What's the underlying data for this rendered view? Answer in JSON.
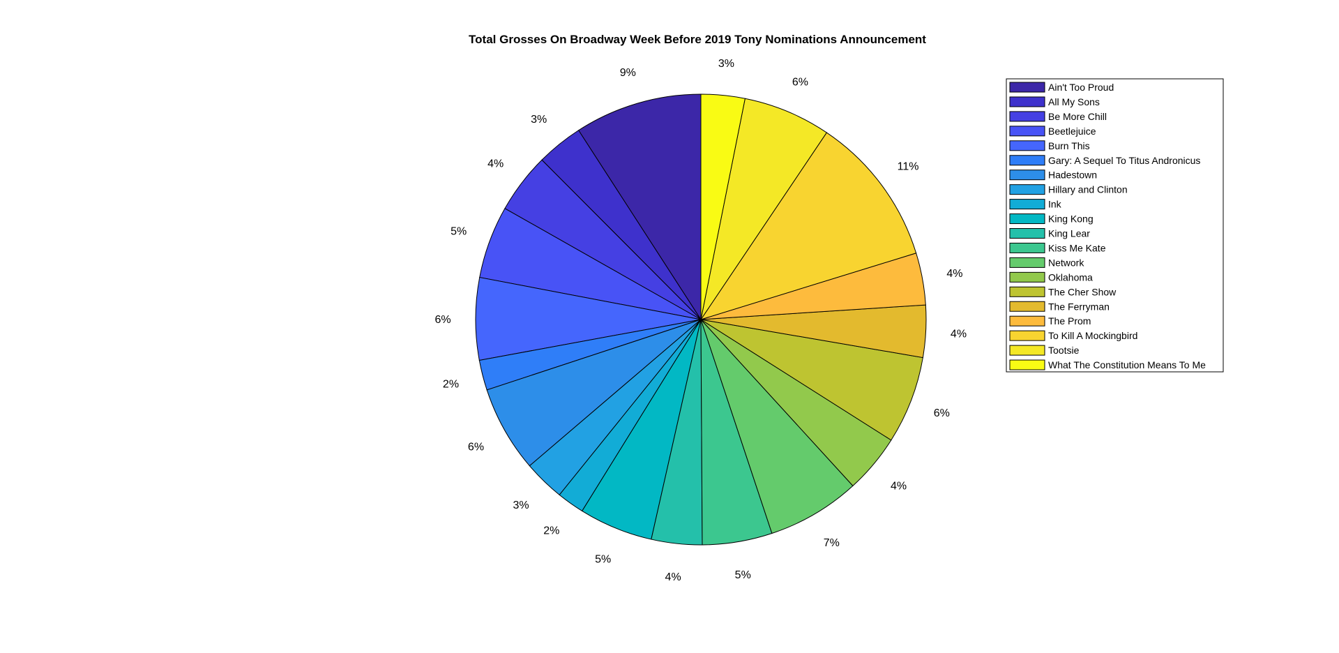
{
  "chart_data": {
    "type": "pie",
    "title": "Total Grosses On Broadway Week Before 2019 Tony Nominations Announcement",
    "direction": "counterclockwise, starting at top",
    "legend_position": "right",
    "slices": [
      {
        "label": "Ain't Too Proud",
        "percent_label": "9%",
        "value": 9.3,
        "color": "#3c27a8"
      },
      {
        "label": "All My Sons",
        "percent_label": "3%",
        "value": 3.4,
        "color": "#3e31cc"
      },
      {
        "label": "Be More Chill",
        "percent_label": "4%",
        "value": 4.4,
        "color": "#4540e3"
      },
      {
        "label": "Beetlejuice",
        "percent_label": "5%",
        "value": 5.3,
        "color": "#4853f6"
      },
      {
        "label": "Burn This",
        "percent_label": "6%",
        "value": 6.0,
        "color": "#4566fd"
      },
      {
        "label": "Gary: A Sequel To Titus Andronicus",
        "percent_label": "2%",
        "value": 2.2,
        "color": "#2f7ef8"
      },
      {
        "label": "Hadestown",
        "percent_label": "6%",
        "value": 6.3,
        "color": "#2d8ee9"
      },
      {
        "label": "Hillary and Clinton",
        "percent_label": "3%",
        "value": 3.0,
        "color": "#22a1e3"
      },
      {
        "label": "Ink",
        "percent_label": "2%",
        "value": 2.0,
        "color": "#12acd6"
      },
      {
        "label": "King Kong",
        "percent_label": "5%",
        "value": 5.4,
        "color": "#02b8c4"
      },
      {
        "label": "King Lear",
        "percent_label": "4%",
        "value": 3.7,
        "color": "#24c0aa"
      },
      {
        "label": "Kiss Me Kate",
        "percent_label": "5%",
        "value": 5.1,
        "color": "#3cc78f"
      },
      {
        "label": "Network",
        "percent_label": "7%",
        "value": 6.8,
        "color": "#64cb6c"
      },
      {
        "label": "Oklahoma",
        "percent_label": "4%",
        "value": 4.3,
        "color": "#92c94c"
      },
      {
        "label": "The Cher Show",
        "percent_label": "6%",
        "value": 6.4,
        "color": "#bec431"
      },
      {
        "label": "The Ferryman",
        "percent_label": "4%",
        "value": 3.8,
        "color": "#e3ba2e"
      },
      {
        "label": "The Prom",
        "percent_label": "4%",
        "value": 3.8,
        "color": "#fdbb3d"
      },
      {
        "label": "To Kill A Mockingbird",
        "percent_label": "11%",
        "value": 11.0,
        "color": "#f8d430"
      },
      {
        "label": "Tootsie",
        "percent_label": "6%",
        "value": 6.4,
        "color": "#f4e826"
      },
      {
        "label": "What The Constitution Means To Me",
        "percent_label": "3%",
        "value": 3.2,
        "color": "#f9fb14"
      }
    ]
  }
}
